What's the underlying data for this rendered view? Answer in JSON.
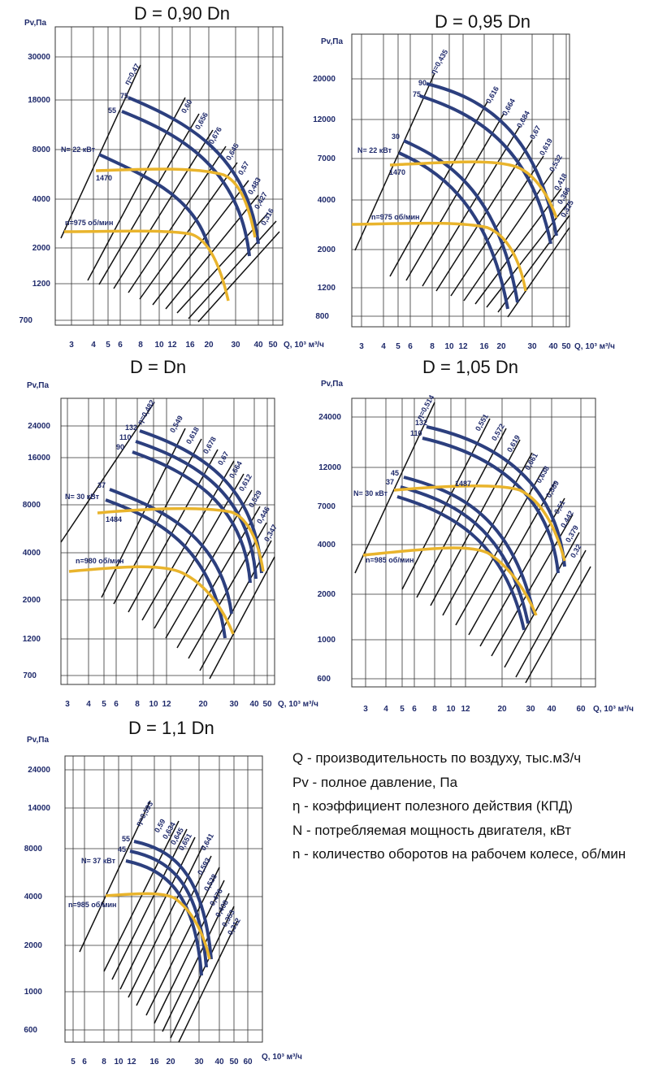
{
  "charts": [
    {
      "title": "D = 0,90 Dn",
      "ylabel": "Pv,Па",
      "xlabel": "Q, 10³ м³/ч",
      "xticks": [
        "3",
        "4",
        "5",
        "6",
        "8",
        "10",
        "12",
        "16",
        "20",
        "30",
        "40",
        "50"
      ],
      "yticks": [
        "30000",
        "18000",
        "8000",
        "4000",
        "2000",
        "1200",
        "700"
      ],
      "rpm": [
        "1470",
        "n=975 об/мин"
      ],
      "power": "N= 22 кВт",
      "fan": [
        "75",
        "55"
      ],
      "eff": [
        "η=0,47",
        "0,60",
        "0,656",
        "0,676",
        "0,645",
        "0,57",
        "0,483",
        "0,427",
        "0,316"
      ]
    },
    {
      "title": "D = 0,95 Dn",
      "ylabel": "Pv,Па",
      "xlabel": "Q, 10³ м³/ч",
      "xticks": [
        "3",
        "4",
        "5",
        "6",
        "8",
        "10",
        "12",
        "16",
        "20",
        "30",
        "40",
        "50"
      ],
      "yticks": [
        "20000",
        "12000",
        "7000",
        "4000",
        "2000",
        "1200",
        "800"
      ],
      "rpm": [
        "1470",
        "n=975 об/мин"
      ],
      "power": "N= 22 кВт",
      "fan": [
        "90",
        "75",
        "30"
      ],
      "eff": [
        "η=0,435",
        "0,616",
        "0,664",
        "0,684",
        "0,67",
        "0,619",
        "0,532",
        "0,418",
        "0,366",
        "0,325"
      ]
    },
    {
      "title": "D = Dn",
      "ylabel": "Pv,Па",
      "xlabel": "Q, 10³ м³/ч",
      "xticks": [
        "3",
        "4",
        "5",
        "6",
        "8",
        "10",
        "12",
        "20",
        "30",
        "40",
        "50"
      ],
      "yticks": [
        "24000",
        "16000",
        "8000",
        "4000",
        "2000",
        "1200",
        "700"
      ],
      "rpm": [
        "1484",
        "n=980 об/мин"
      ],
      "power": "N= 30 кВт",
      "fan": [
        "132",
        "110",
        "90",
        "37"
      ],
      "eff": [
        "η=0,482",
        "0,549",
        "0,618",
        "0,678",
        "0,67",
        "0,664",
        "0,612",
        "0,529",
        "0,446",
        "0,347"
      ]
    },
    {
      "title": "D = 1,05 Dn",
      "ylabel": "Pv,Па",
      "xlabel": "Q, 10³ м³/ч",
      "xticks": [
        "3",
        "4",
        "5",
        "6",
        "8",
        "10",
        "12",
        "20",
        "30",
        "40",
        "60"
      ],
      "yticks": [
        "24000",
        "12000",
        "7000",
        "4000",
        "2000",
        "1000",
        "600"
      ],
      "rpm": [
        "1487",
        "n=985 об/мин"
      ],
      "power": "N= 30 кВт",
      "fan": [
        "132",
        "110",
        "45",
        "37"
      ],
      "eff": [
        "η=0,514",
        "0,551",
        "0,572",
        "0,619",
        "0,661",
        "0,638",
        "0,589",
        "0,51",
        "0,442",
        "0,379",
        "0,32"
      ]
    },
    {
      "title": "D = 1,1 Dn",
      "ylabel": "Pv,Па",
      "xlabel": "Q, 10³ м³/ч",
      "xticks": [
        "5",
        "6",
        "8",
        "10",
        "12",
        "16",
        "20",
        "30",
        "40",
        "50",
        "60"
      ],
      "yticks": [
        "24000",
        "14000",
        "8000",
        "4000",
        "2000",
        "1000",
        "600"
      ],
      "rpm": [
        "n=985 об/мин"
      ],
      "power": "N= 37 кВт",
      "fan": [
        "55",
        "45"
      ],
      "eff": [
        "η=0,593",
        "0,59",
        "0,634",
        "0,645",
        "0,651",
        "0,641",
        "0,593",
        "0,528",
        "0,476",
        "0,408",
        "0,353",
        "0,312"
      ]
    }
  ],
  "legend": [
    "Q - производительность по воздуху, тыс.м3/ч",
    "Pv - полное давление, Па",
    "η - коэффициент полезного действия (КПД)",
    "N - потребляемая мощность двигателя, кВт",
    "n - количество оборотов на рабочем колесе, об/мин"
  ],
  "colors": {
    "blue": "#2c3f7e",
    "yellow": "#e9b42c",
    "text": "#1f2a6b"
  }
}
